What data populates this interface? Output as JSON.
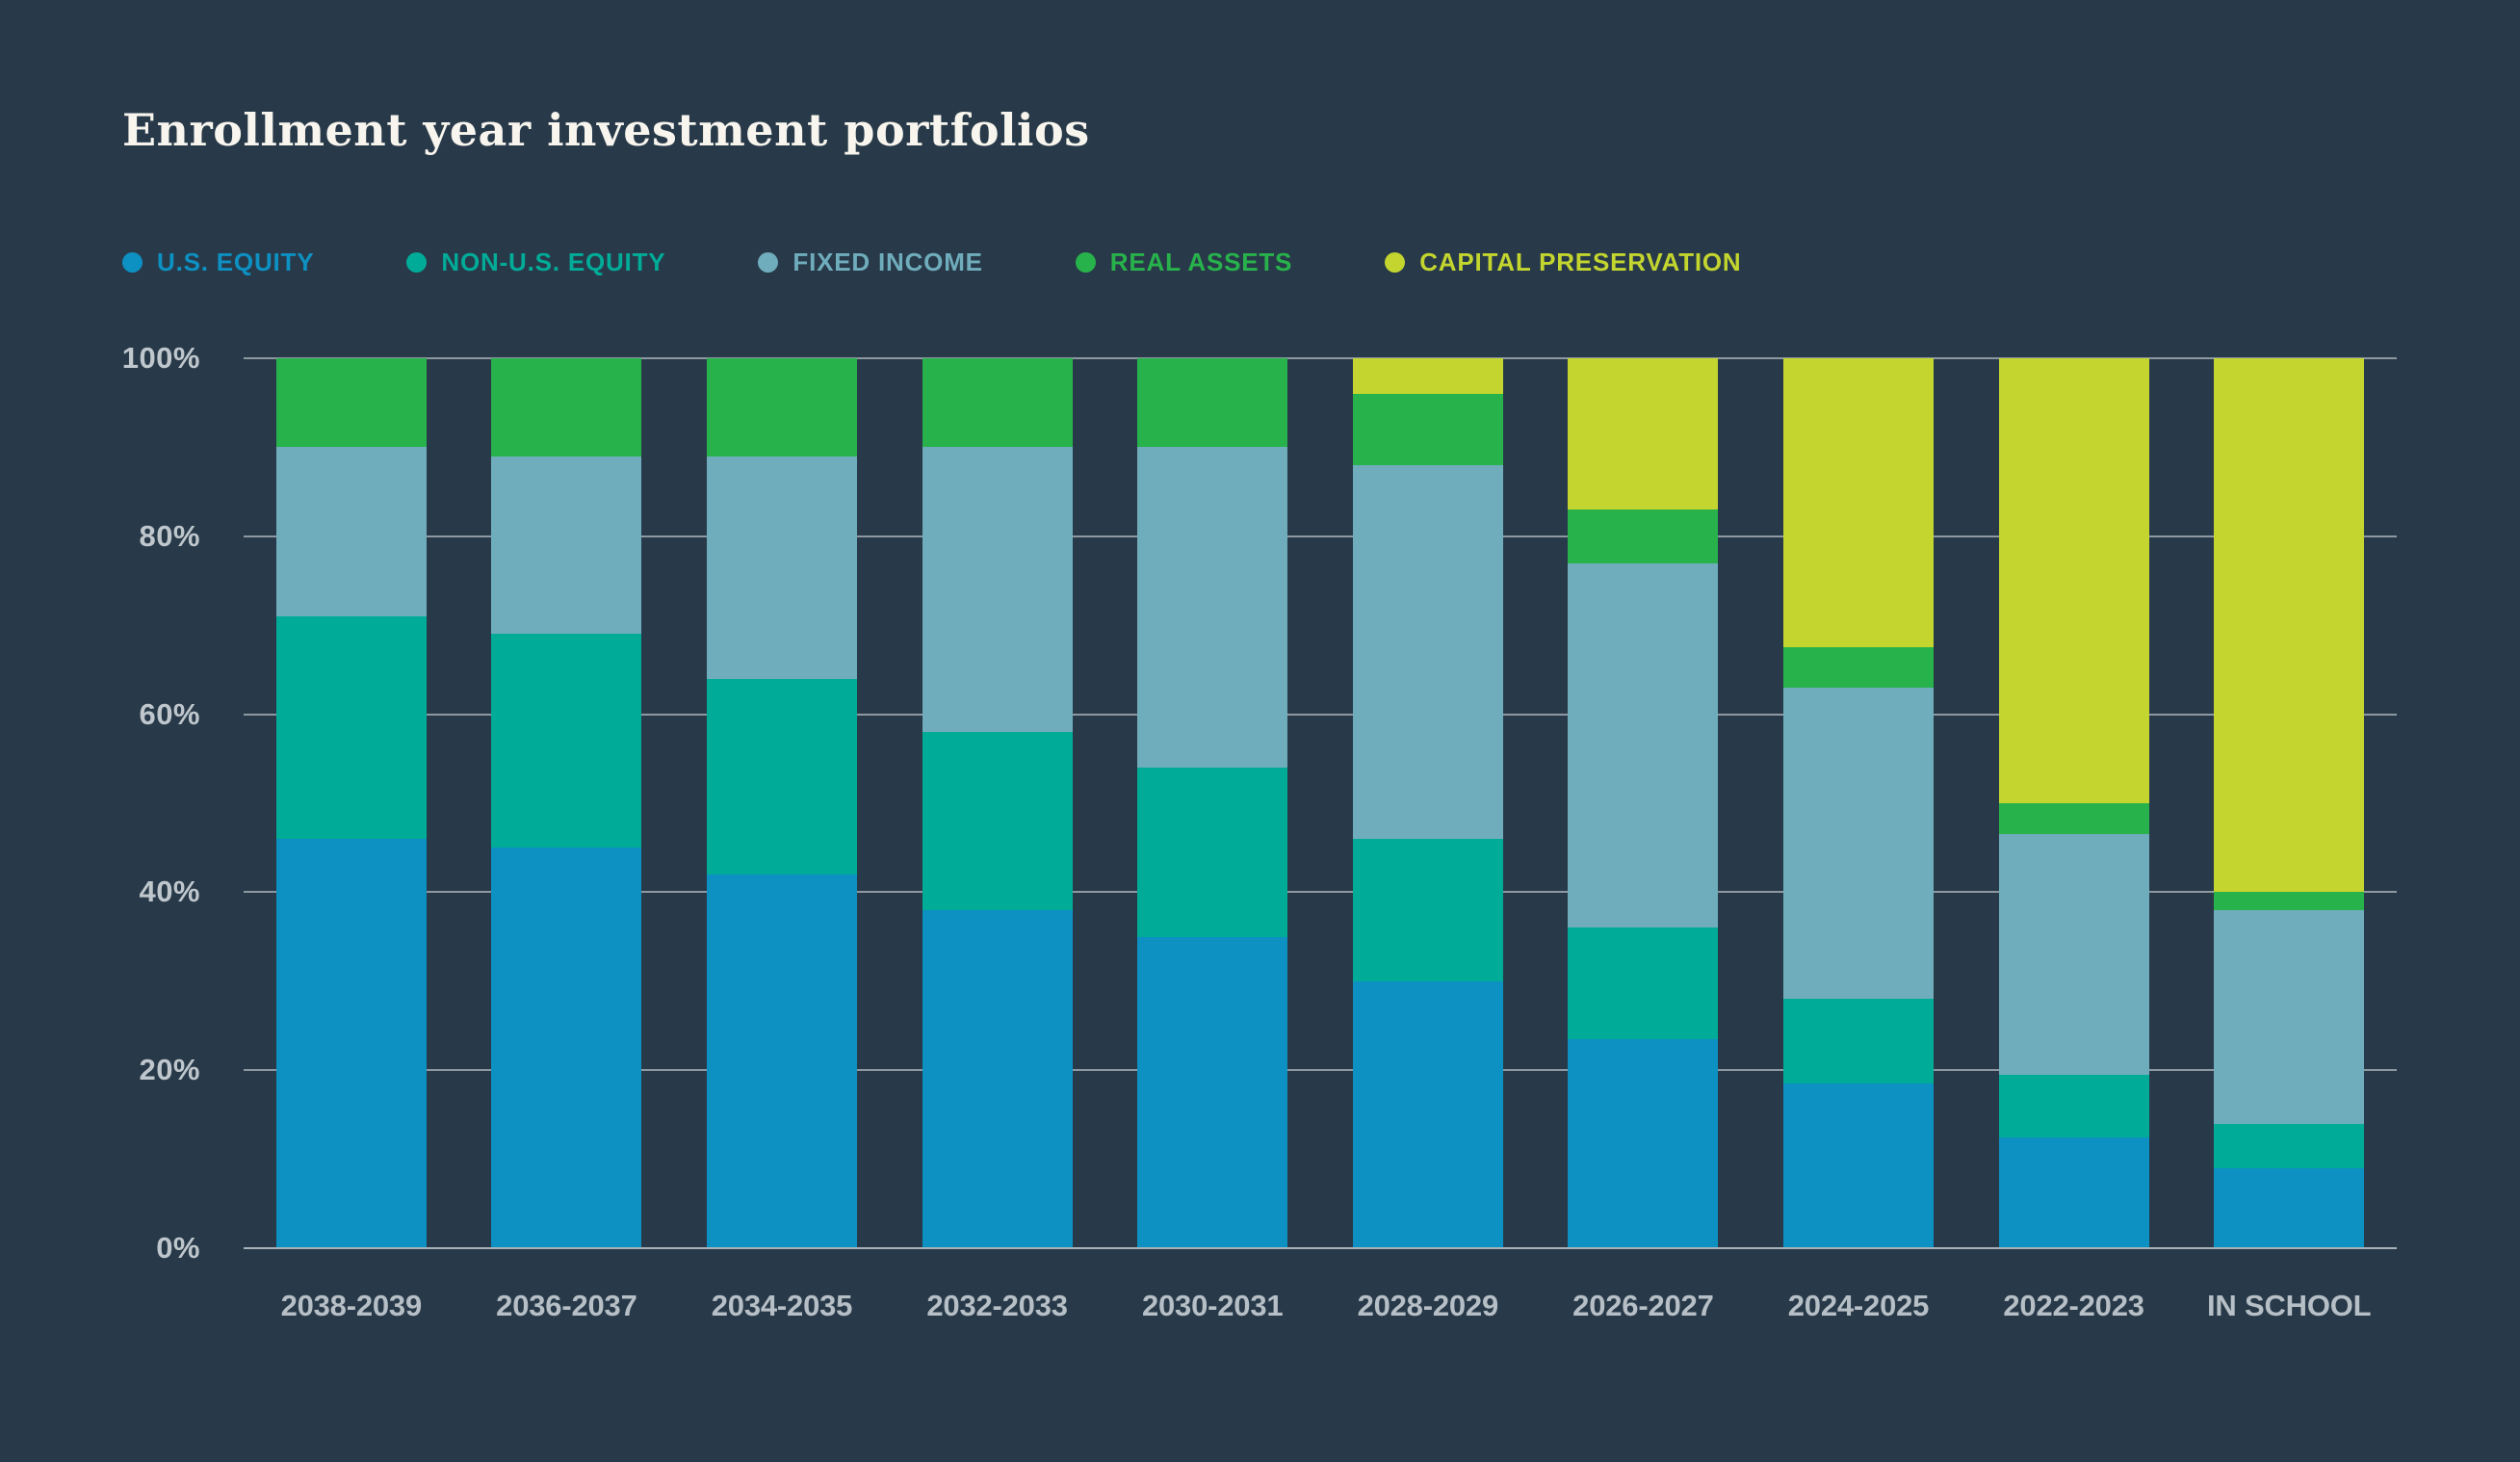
{
  "title": "Enrollment year investment portfolios",
  "colors": {
    "background": "#283a49",
    "title_text": "#f8f5ee",
    "gridline": "#8e98a1",
    "baseline": "#aab2b9",
    "y_axis_label": "#bfc7cd",
    "x_axis_label": "#b7bfc6",
    "us_equity": "#0d90c2",
    "non_us_equity": "#00ab98",
    "fixed_income": "#6fadbc",
    "real_assets": "#28b24b",
    "capital_preservation": "#c3d52e"
  },
  "legend": {
    "position": "top",
    "items": [
      "U.S. EQUITY",
      "NON-U.S. EQUITY",
      "FIXED INCOME",
      "REAL ASSETS",
      "CAPITAL PRESERVATION"
    ]
  },
  "chart_data": {
    "type": "bar",
    "stacked": true,
    "orientation": "vertical",
    "title": "Enrollment year investment portfolios",
    "categories": [
      "2038-2039",
      "2036-2037",
      "2034-2035",
      "2032-2033",
      "2030-2031",
      "2028-2029",
      "2026-2027",
      "2024-2025",
      "2022-2023",
      "IN SCHOOL"
    ],
    "series": [
      {
        "name": "U.S. EQUITY",
        "color": "#0d90c2",
        "values": [
          46,
          45,
          42,
          38,
          35,
          30,
          23.5,
          18.5,
          12.5,
          9
        ]
      },
      {
        "name": "NON-U.S. EQUITY",
        "color": "#00ab98",
        "values": [
          25,
          24,
          22,
          20,
          19,
          16,
          12.5,
          9.5,
          7,
          5
        ]
      },
      {
        "name": "FIXED INCOME",
        "color": "#6fadbc",
        "values": [
          19,
          20,
          25,
          32,
          36,
          42,
          41,
          35,
          27,
          24
        ]
      },
      {
        "name": "REAL ASSETS",
        "color": "#28b24b",
        "values": [
          10,
          11,
          11,
          10,
          10,
          8,
          6,
          4.5,
          3.5,
          2
        ]
      },
      {
        "name": "CAPITAL PRESERVATION",
        "color": "#c3d52e",
        "values": [
          0,
          0,
          0,
          0,
          0,
          4,
          17,
          32.5,
          50,
          60
        ]
      }
    ],
    "xlabel": "",
    "ylabel": "",
    "y_ticks": [
      "0%",
      "20%",
      "40%",
      "60%",
      "80%",
      "100%"
    ],
    "ylim": [
      0,
      100
    ],
    "grid": true,
    "units": "percent",
    "legend_position": "top"
  }
}
